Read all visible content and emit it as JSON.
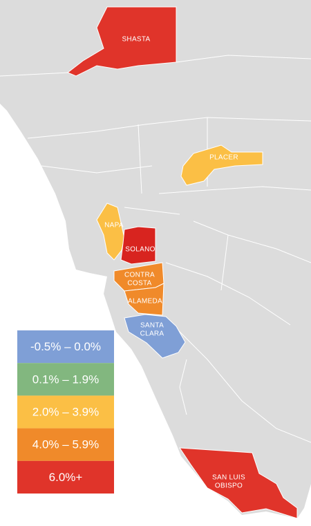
{
  "map": {
    "counties": [
      {
        "label_lines": [
          "SHASTA"
        ],
        "color": "#e0342a"
      },
      {
        "label_lines": [
          "PLACER"
        ],
        "color": "#fbbf45"
      },
      {
        "label_lines": [
          "NAPA"
        ],
        "color": "#fbbf45"
      },
      {
        "label_lines": [
          "SOLANO"
        ],
        "color": "#d8241f"
      },
      {
        "label_lines": [
          "CONTRA",
          "COSTA"
        ],
        "color": "#f08a2a"
      },
      {
        "label_lines": [
          "ALAMEDA"
        ],
        "color": "#f08a2a"
      },
      {
        "label_lines": [
          "SANTA",
          "CLARA"
        ],
        "color": "#7f9fd6"
      },
      {
        "label_lines": [
          "SAN LUIS",
          "OBISPO"
        ],
        "color": "#e0342a"
      }
    ],
    "legend": [
      {
        "label": "-0.5% – 0.0%",
        "color": "#7f9fd6"
      },
      {
        "label": "0.1% – 1.9%",
        "color": "#82b77f"
      },
      {
        "label": "2.0% – 3.9%",
        "color": "#fbbf45"
      },
      {
        "label": "4.0% – 5.9%",
        "color": "#f08a2a"
      },
      {
        "label": "6.0%+",
        "color": "#e0342a"
      }
    ]
  }
}
